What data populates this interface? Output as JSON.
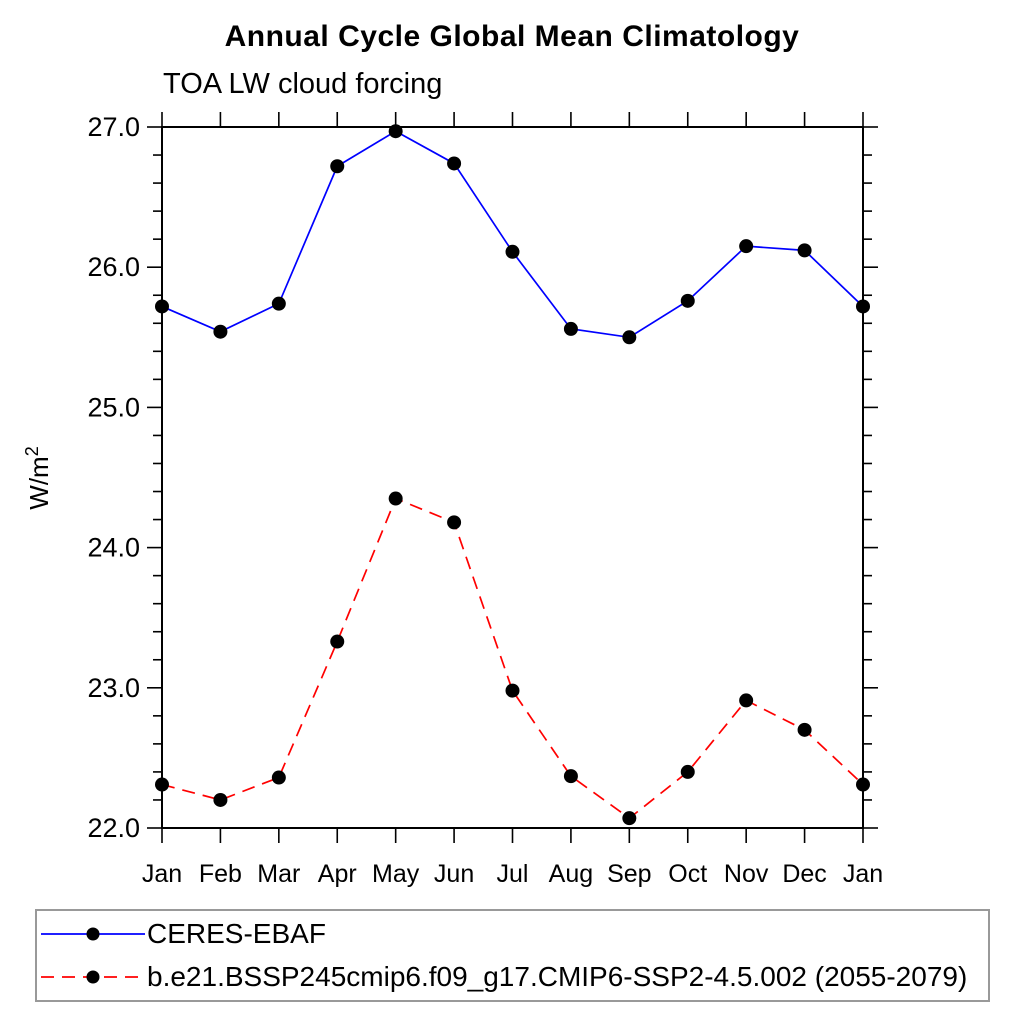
{
  "chart_data": {
    "type": "line",
    "title": "Annual Cycle Global Mean Climatology",
    "subtitle": "TOA LW cloud forcing",
    "ylabel": "W/m²",
    "ylabel_base": "W/m",
    "ylabel_sup": "2",
    "xlabel": "",
    "x_tick_labels": [
      "Jan",
      "Feb",
      "Mar",
      "Apr",
      "May",
      "Jun",
      "Jul",
      "Aug",
      "Sep",
      "Oct",
      "Nov",
      "Dec",
      "Jan"
    ],
    "y_ticks": [
      22.0,
      23.0,
      24.0,
      25.0,
      26.0,
      27.0
    ],
    "y_tick_labels": [
      "22.0",
      "23.0",
      "24.0",
      "25.0",
      "26.0",
      "27.0"
    ],
    "ylim": [
      22.0,
      27.0
    ],
    "y_minor_step": 0.2,
    "grid": false,
    "frame": "full-box-outward-ticks",
    "legend_position": "bottom-left-box",
    "colors": {
      "axis": "#000000",
      "marker": "#000000",
      "legend_border": "#999999",
      "series1": "#0000ff",
      "series2": "#ff0000"
    },
    "series": [
      {
        "name": "CERES-EBAF",
        "color": "#0000ff",
        "style": "solid",
        "marker": "circle",
        "marker_color": "#000000",
        "values": [
          25.72,
          25.54,
          25.74,
          26.72,
          26.97,
          26.74,
          26.11,
          25.56,
          25.5,
          25.76,
          26.15,
          26.12,
          25.72
        ]
      },
      {
        "name": "b.e21.BSSP245cmip6.f09_g17.CMIP6-SSP2-4.5.002 (2055-2079)",
        "color": "#ff0000",
        "style": "dashed",
        "marker": "circle",
        "marker_color": "#000000",
        "values": [
          22.31,
          22.2,
          22.36,
          23.33,
          24.35,
          24.18,
          22.98,
          22.37,
          22.07,
          22.4,
          22.91,
          22.7,
          22.31
        ]
      }
    ]
  }
}
